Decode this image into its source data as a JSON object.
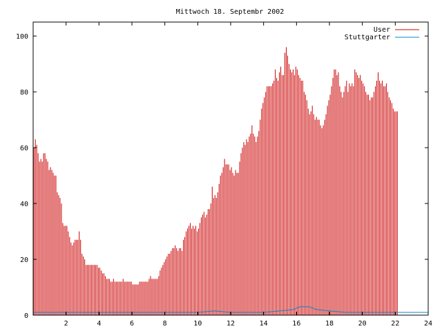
{
  "chart_data": {
    "type": "bar",
    "title": "Mittwoch 18. Septembr 2002",
    "xlabel": "",
    "ylabel": "",
    "xlim": [
      0,
      24
    ],
    "ylim": [
      0,
      105
    ],
    "x_ticks": [
      "2",
      "4",
      "6",
      "8",
      "10",
      "12",
      "14",
      "16",
      "18",
      "20",
      "22",
      "24"
    ],
    "y_ticks": [
      "0",
      "20",
      "40",
      "60",
      "80",
      "100"
    ],
    "legend_position": "top-right",
    "grid": false,
    "bar_step_hours": 0.0833,
    "series": [
      {
        "name": "User",
        "color": "#cc0000",
        "style": "impulses",
        "values": [
          60,
          63,
          61,
          58,
          55,
          56,
          55,
          58,
          58,
          56,
          55,
          52,
          53,
          52,
          51,
          50,
          50,
          44,
          43,
          42,
          40,
          33,
          32,
          32,
          32,
          30,
          28,
          26,
          25,
          26,
          27,
          27,
          27,
          30,
          27,
          22,
          21,
          20,
          18,
          18,
          18,
          18,
          18,
          18,
          18,
          18,
          18,
          17,
          17,
          16,
          15,
          15,
          14,
          13,
          13,
          13,
          12,
          12,
          13,
          12,
          12,
          12,
          12,
          12,
          12,
          13,
          12,
          12,
          12,
          12,
          12,
          12,
          11,
          11,
          11,
          11,
          11,
          12,
          12,
          12,
          12,
          12,
          12,
          12,
          13,
          14,
          13,
          13,
          13,
          13,
          13,
          14,
          16,
          17,
          18,
          19,
          20,
          21,
          22,
          22,
          23,
          24,
          24,
          25,
          24,
          23,
          24,
          24,
          23,
          27,
          28,
          30,
          31,
          32,
          33,
          31,
          32,
          31,
          32,
          30,
          31,
          33,
          35,
          36,
          37,
          35,
          36,
          38,
          38,
          40,
          46,
          42,
          43,
          42,
          44,
          47,
          50,
          51,
          53,
          56,
          54,
          54,
          54,
          52,
          53,
          51,
          50,
          52,
          51,
          51,
          55,
          58,
          60,
          62,
          61,
          63,
          62,
          64,
          65,
          68,
          65,
          64,
          62,
          64,
          66,
          70,
          74,
          76,
          78,
          80,
          82,
          82,
          82,
          82,
          83,
          84,
          88,
          85,
          84,
          87,
          89,
          86,
          86,
          94,
          96,
          93,
          90,
          88,
          87,
          88,
          86,
          89,
          88,
          86,
          85,
          84,
          84,
          80,
          79,
          77,
          74,
          72,
          73,
          75,
          72,
          70,
          71,
          70,
          70,
          68,
          67,
          68,
          70,
          72,
          75,
          77,
          79,
          82,
          85,
          88,
          88,
          86,
          87,
          82,
          80,
          78,
          80,
          82,
          84,
          80,
          83,
          82,
          83,
          82,
          88,
          87,
          86,
          85,
          86,
          84,
          83,
          82,
          80,
          79,
          79,
          77,
          78,
          78,
          80,
          82,
          84,
          87,
          84,
          83,
          84,
          82,
          82,
          83,
          80,
          78,
          77,
          76,
          74,
          73,
          73,
          73
        ]
      },
      {
        "name": "Stuttgarter",
        "color": "#0088cc",
        "style": "line",
        "points": [
          [
            0,
            1
          ],
          [
            8,
            1
          ],
          [
            10,
            1
          ],
          [
            11,
            1.5
          ],
          [
            12,
            1
          ],
          [
            14,
            1
          ],
          [
            15,
            1.5
          ],
          [
            15.8,
            2
          ],
          [
            16.2,
            3
          ],
          [
            16.8,
            3
          ],
          [
            17.2,
            2
          ],
          [
            18,
            1.5
          ],
          [
            19,
            1
          ],
          [
            24,
            1
          ]
        ]
      }
    ]
  }
}
